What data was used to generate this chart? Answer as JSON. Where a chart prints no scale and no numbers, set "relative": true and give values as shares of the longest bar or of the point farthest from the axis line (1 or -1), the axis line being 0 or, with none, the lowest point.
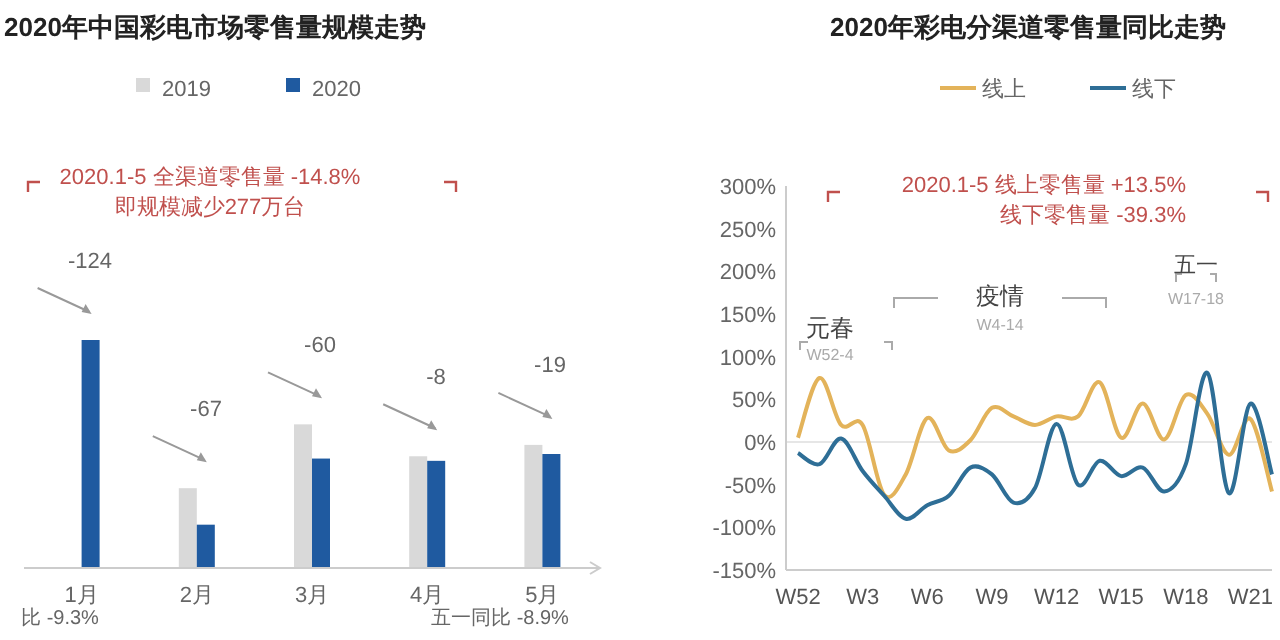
{
  "chart_data": [
    {
      "type": "bar",
      "title": "2020年中国彩电市场零售量规模走势",
      "relative": true,
      "legend": "top",
      "categories": [
        "1月",
        "2月",
        "3月",
        "4月",
        "5月"
      ],
      "series": [
        {
          "name": "2019",
          "color": "#d9d9d9",
          "values": [
            null,
            0.35,
            0.63,
            0.49,
            0.54
          ]
        },
        {
          "name": "2020",
          "color": "#1f5aa0",
          "values": [
            1,
            0.19,
            0.48,
            0.47,
            0.5
          ]
        }
      ],
      "annotations": [
        "-124",
        "-67",
        "-60",
        "-8",
        "-19",
        "2020.1-5 全渠道零售量 -14.8%",
        "即规模减少277万台",
        "比 -9.3%",
        "五一同比 -8.9%"
      ]
    },
    {
      "type": "line",
      "title": "2020年彩电分渠道零售量同比走势",
      "legend": "top",
      "categories": [
        "W52",
        null,
        null,
        "W3",
        null,
        null,
        "W6",
        null,
        null,
        "W9",
        null,
        null,
        "W12",
        null,
        null,
        "W15",
        null,
        null,
        "W18",
        null,
        null,
        "W21",
        null
      ],
      "series": [
        {
          "name": "线上",
          "color": "#e3b35a",
          "values": [
            5,
            75,
            20,
            20,
            -62,
            -38,
            28,
            -10,
            2,
            40,
            30,
            20,
            30,
            30,
            70,
            5,
            45,
            3,
            55,
            33,
            -15,
            27,
            -58
          ]
        },
        {
          "name": "线下",
          "color": "#2e6e96",
          "values": [
            -13,
            -26,
            4,
            -34,
            -63,
            -90,
            -74,
            -63,
            -30,
            -38,
            -71,
            -54,
            21,
            -50,
            -22,
            -40,
            -30,
            -58,
            -26,
            81,
            -60,
            45,
            -38
          ]
        }
      ],
      "ylim": [
        -150,
        300
      ],
      "yticks": [
        {
          "value": -150,
          "label": "-150%"
        },
        {
          "value": -100,
          "label": "-100%"
        },
        {
          "value": -50,
          "label": "-50%"
        },
        {
          "value": 0,
          "label": "0%"
        },
        {
          "value": 50,
          "label": "50%"
        },
        {
          "value": 100,
          "label": "100%"
        },
        {
          "value": 150,
          "label": "150%"
        },
        {
          "value": 200,
          "label": "200%"
        },
        {
          "value": 250,
          "label": "250%"
        },
        {
          "value": 300,
          "label": "300%"
        }
      ],
      "ref_lines": [
        {
          "axis": "y",
          "value": 0,
          "color": "#e6e6e6"
        }
      ],
      "annotations": [
        "2020.1-5 线上零售量 +13.5%",
        "线下零售量 -39.3%",
        "元春",
        "W52-4",
        "疫情",
        "W4-14",
        "五一",
        "W17-18"
      ]
    }
  ]
}
